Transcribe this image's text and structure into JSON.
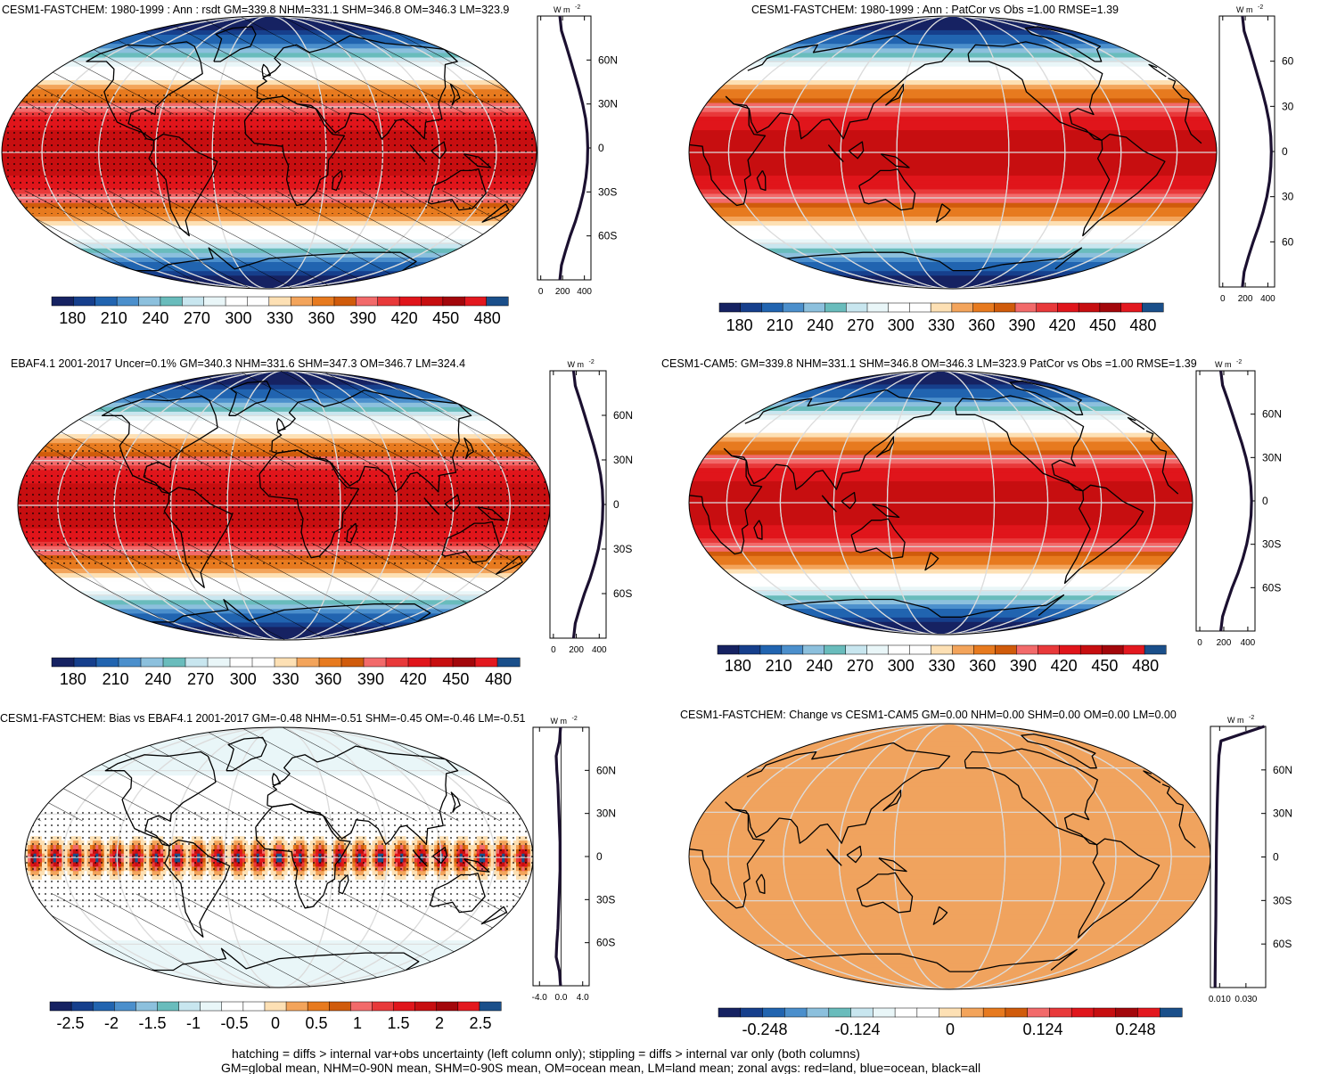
{
  "figure": {
    "footer": [
      "hatching = diffs > internal var+obs uncertainty (left column only); stippling = diffs > internal var only (both columns)",
      "GM=global mean, NHM=0-90N mean, SHM=0-90S mean, OM=ocean mean, LM=land mean; zonal avgs: red=land, blue=ocean, black=all"
    ]
  },
  "colors": {
    "full_field": [
      "#162262",
      "#163f8c",
      "#2164b0",
      "#4b8fcc",
      "#8cc0dd",
      "#69bcbc",
      "#c8e6ef",
      "#e9f6f8",
      "#ffffff",
      "#fefefe",
      "#fde0b4",
      "#f3a45b",
      "#e77a1f",
      "#d05b0b",
      "#f26a6a",
      "#e8393a",
      "#e0151b",
      "#c70e10",
      "#a3070b",
      "#e3181f",
      "#1a4f8a"
    ],
    "diff": [
      "#162262",
      "#163f8c",
      "#2164b0",
      "#4b8fcc",
      "#8cc0dd",
      "#69bcbc",
      "#c8e6ef",
      "#e9f6f8",
      "#ffffff",
      "#fefefe",
      "#fde0b4",
      "#f3a45b",
      "#e77a1f",
      "#d05b0b",
      "#f26a6a",
      "#e8393a",
      "#e0151b",
      "#c70e10",
      "#a3070b",
      "#e3181f",
      "#1a4f8a"
    ],
    "change_fill": "#f0a35e"
  },
  "chart_data": [
    {
      "id": "p1",
      "type": "heatmap",
      "projection": "robinson",
      "center_lon": 0,
      "title": "CESM1-FASTCHEM: 1980-1999 : Ann : rsdt GM=339.8 NHM=331.1 SHM=346.8 OM=346.3 LM=323.9",
      "field": "insolation",
      "scale": 1,
      "hatching": true,
      "stippling": true,
      "colorbar": {
        "ticks": [
          "180",
          "210",
          "240",
          "270",
          "300",
          "330",
          "360",
          "390",
          "420",
          "450",
          "480"
        ],
        "levels": [
          180,
          480
        ]
      },
      "zonal": {
        "units": "W m",
        "units_exp": "-2",
        "lat_ticks": [
          "60N",
          "30N",
          "0",
          "30S",
          "60S"
        ],
        "x_ticks": [
          "0",
          "200",
          "400"
        ],
        "x_values": [
          0,
          200,
          400
        ],
        "xlim": [
          -30,
          460
        ],
        "lat": [
          -90,
          -80,
          -70,
          -60,
          -50,
          -40,
          -30,
          -20,
          -10,
          0,
          10,
          20,
          30,
          40,
          50,
          60,
          70,
          80,
          90
        ],
        "all": [
          175,
          190,
          228,
          270,
          318,
          358,
          391,
          414,
          427,
          431,
          426,
          411,
          384,
          350,
          311,
          272,
          232,
          190,
          175
        ]
      }
    },
    {
      "id": "p2",
      "type": "heatmap",
      "projection": "robinson",
      "center_lon": 180,
      "title": "CESM1-FASTCHEM: 1980-1999 : Ann : PatCor vs Obs =1.00 RMSE=1.39",
      "field": "insolation",
      "scale": 1,
      "hatching": false,
      "stippling": false,
      "colorbar": {
        "ticks": [
          "180",
          "210",
          "240",
          "270",
          "300",
          "330",
          "360",
          "390",
          "420",
          "450",
          "480"
        ],
        "levels": [
          180,
          480
        ]
      },
      "zonal": {
        "units": "W m",
        "units_exp": "-2",
        "lat_ticks": [
          "60",
          "30",
          "0",
          "30",
          "60"
        ],
        "x_ticks": [
          "0",
          "200",
          "400"
        ],
        "x_values": [
          0,
          200,
          400
        ],
        "xlim": [
          -30,
          460
        ],
        "lat": [
          -90,
          -80,
          -70,
          -60,
          -50,
          -40,
          -30,
          -20,
          -10,
          0,
          10,
          20,
          30,
          40,
          50,
          60,
          70,
          80,
          90
        ],
        "all": [
          175,
          190,
          228,
          270,
          318,
          358,
          391,
          414,
          427,
          431,
          426,
          411,
          384,
          350,
          311,
          272,
          232,
          190,
          175
        ]
      }
    },
    {
      "id": "p3",
      "type": "heatmap",
      "projection": "robinson",
      "center_lon": 0,
      "title": "EBAF4.1 2001-2017 Uncer=0.1% GM=340.3 NHM=331.6 SHM=347.3 OM=346.7 LM=324.4",
      "field": "insolation",
      "scale": 1,
      "hatching": true,
      "stippling": true,
      "colorbar": {
        "ticks": [
          "180",
          "210",
          "240",
          "270",
          "300",
          "330",
          "360",
          "390",
          "420",
          "450",
          "480"
        ],
        "levels": [
          180,
          480
        ]
      },
      "zonal": {
        "units": "W m",
        "units_exp": "-2",
        "lat_ticks": [
          "60N",
          "30N",
          "0",
          "30S",
          "60S"
        ],
        "x_ticks": [
          "0",
          "200",
          "400"
        ],
        "x_values": [
          0,
          200,
          400
        ],
        "xlim": [
          -30,
          460
        ],
        "lat": [
          -90,
          -80,
          -70,
          -60,
          -50,
          -40,
          -30,
          -20,
          -10,
          0,
          10,
          20,
          30,
          40,
          50,
          60,
          70,
          80,
          90
        ],
        "all": [
          176,
          191,
          229,
          271,
          319,
          359,
          392,
          415,
          428,
          432,
          427,
          412,
          385,
          351,
          312,
          273,
          233,
          191,
          176
        ]
      }
    },
    {
      "id": "p4",
      "type": "heatmap",
      "projection": "robinson",
      "center_lon": 180,
      "title": "CESM1-CAM5: GM=339.8 NHM=331.1 SHM=346.8 OM=346.3 LM=323.9 PatCor vs Obs =1.00 RMSE=1.39",
      "field": "insolation",
      "scale": 1,
      "hatching": false,
      "stippling": false,
      "colorbar": {
        "ticks": [
          "180",
          "210",
          "240",
          "270",
          "300",
          "330",
          "360",
          "390",
          "420",
          "450",
          "480"
        ],
        "levels": [
          180,
          480
        ]
      },
      "zonal": {
        "units": "W m",
        "units_exp": "-2",
        "lat_ticks": [
          "60N",
          "30N",
          "0",
          "30S",
          "60S"
        ],
        "x_ticks": [
          "0",
          "200",
          "400"
        ],
        "x_values": [
          0,
          200,
          400
        ],
        "xlim": [
          -30,
          460
        ],
        "lat": [
          -90,
          -80,
          -70,
          -60,
          -50,
          -40,
          -30,
          -20,
          -10,
          0,
          10,
          20,
          30,
          40,
          50,
          60,
          70,
          80,
          90
        ],
        "all": [
          175,
          190,
          228,
          270,
          318,
          358,
          391,
          414,
          427,
          431,
          426,
          411,
          384,
          350,
          311,
          272,
          232,
          190,
          175
        ]
      }
    },
    {
      "id": "p5",
      "type": "heatmap",
      "projection": "robinson",
      "center_lon": 0,
      "title": "CESM1-FASTCHEM: Bias vs EBAF4.1 2001-2017 GM=-0.48 NHM=-0.51 SHM=-0.45 OM=-0.46 LM=-0.51",
      "field": "bias",
      "scale": 1,
      "hatching": true,
      "stippling": true,
      "colorbar": {
        "ticks": [
          "-2.5",
          "-2",
          "-1.5",
          "-1",
          "-0.5",
          "0",
          "0.5",
          "1",
          "1.5",
          "2",
          "2.5"
        ],
        "levels": [
          -2.75,
          2.75
        ]
      },
      "zonal": {
        "units": "W m",
        "units_exp": "-2",
        "lat_ticks": [
          "60N",
          "30N",
          "0",
          "30S",
          "60S"
        ],
        "x_ticks": [
          "-4.0",
          "0.0",
          "4.0"
        ],
        "x_values": [
          -4,
          0,
          4
        ],
        "xlim": [
          -5.2,
          5.2
        ],
        "zero_line": true,
        "lat": [
          -90,
          -80,
          -70,
          -60,
          -50,
          -40,
          -30,
          -20,
          -10,
          0,
          10,
          20,
          30,
          40,
          50,
          60,
          70,
          80,
          90
        ],
        "all": [
          -0.1,
          -0.3,
          -0.9,
          -0.8,
          -0.6,
          -0.5,
          -0.4,
          -0.3,
          -0.2,
          -0.2,
          -0.2,
          -0.3,
          -0.4,
          -0.5,
          -0.6,
          -0.8,
          -0.9,
          -0.3,
          -0.1
        ]
      }
    },
    {
      "id": "p6",
      "type": "heatmap",
      "projection": "robinson",
      "center_lon": 180,
      "title": "CESM1-FASTCHEM: Change vs CESM1-CAM5 GM=0.00 NHM=0.00 SHM=0.00 OM=0.00 LM=0.00",
      "field": "uniform",
      "scale": 1,
      "hatching": false,
      "stippling": false,
      "colorbar": {
        "ticks": [
          "-0.248",
          "-0.124",
          "0",
          "0.124",
          "0.248"
        ],
        "levels": [
          -0.31,
          0.31
        ]
      },
      "zonal": {
        "units": "W m",
        "units_exp": "-2",
        "lat_ticks": [
          "60N",
          "30N",
          "0",
          "30S",
          "60S"
        ],
        "x_ticks": [
          "0.010",
          "0.030"
        ],
        "x_values": [
          0.01,
          0.03
        ],
        "xlim": [
          0.003,
          0.045
        ],
        "lat": [
          -90,
          -80,
          -70,
          -60,
          -50,
          -40,
          -30,
          -20,
          -10,
          0,
          10,
          20,
          30,
          40,
          50,
          60,
          70,
          80,
          90
        ],
        "all": [
          0.0065,
          0.0066,
          0.0067,
          0.0068,
          0.007,
          0.0071,
          0.0072,
          0.0073,
          0.0074,
          0.0075,
          0.0076,
          0.0078,
          0.008,
          0.0083,
          0.0086,
          0.009,
          0.0095,
          0.011,
          0.044
        ]
      }
    }
  ]
}
